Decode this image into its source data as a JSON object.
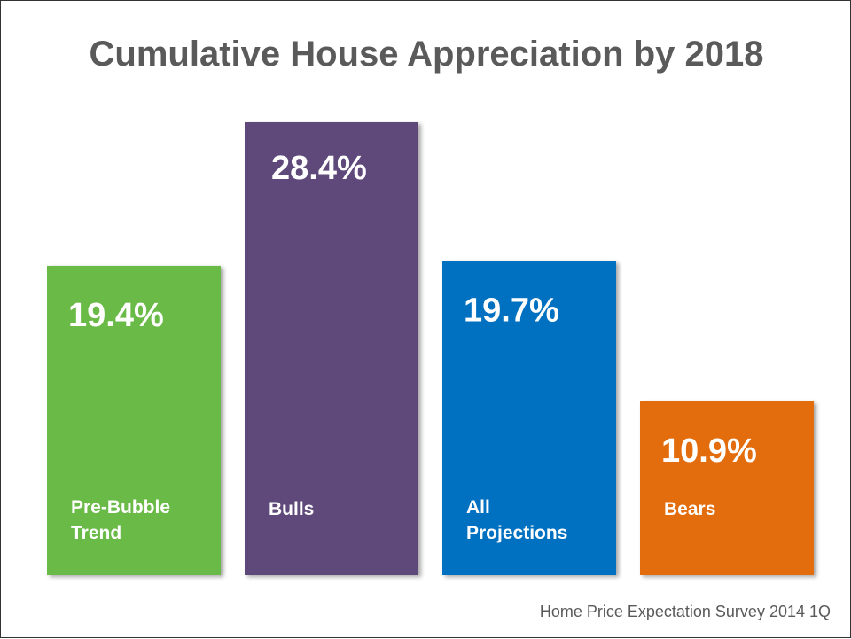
{
  "title": "Cumulative House Appreciation by 2018",
  "source": "Home Price Expectation Survey 2014 1Q",
  "chart_data": {
    "type": "bar",
    "title": "Cumulative House Appreciation by 2018",
    "xlabel": "",
    "ylabel": "",
    "grid": false,
    "categories": [
      "Pre-Bubble Trend",
      "Bulls",
      "All Projections",
      "Bears"
    ],
    "category_lines": [
      [
        "Pre-Bubble",
        "Trend"
      ],
      [
        "Bulls"
      ],
      [
        "All",
        "Projections"
      ],
      [
        "Bears"
      ]
    ],
    "values": [
      19.4,
      28.4,
      19.7,
      10.9
    ],
    "value_labels": [
      "19.4%",
      "28.4%",
      "19.7%",
      "10.9%"
    ],
    "colors": [
      "#6aba46",
      "#5f497a",
      "#0070c0",
      "#e36c09"
    ]
  }
}
